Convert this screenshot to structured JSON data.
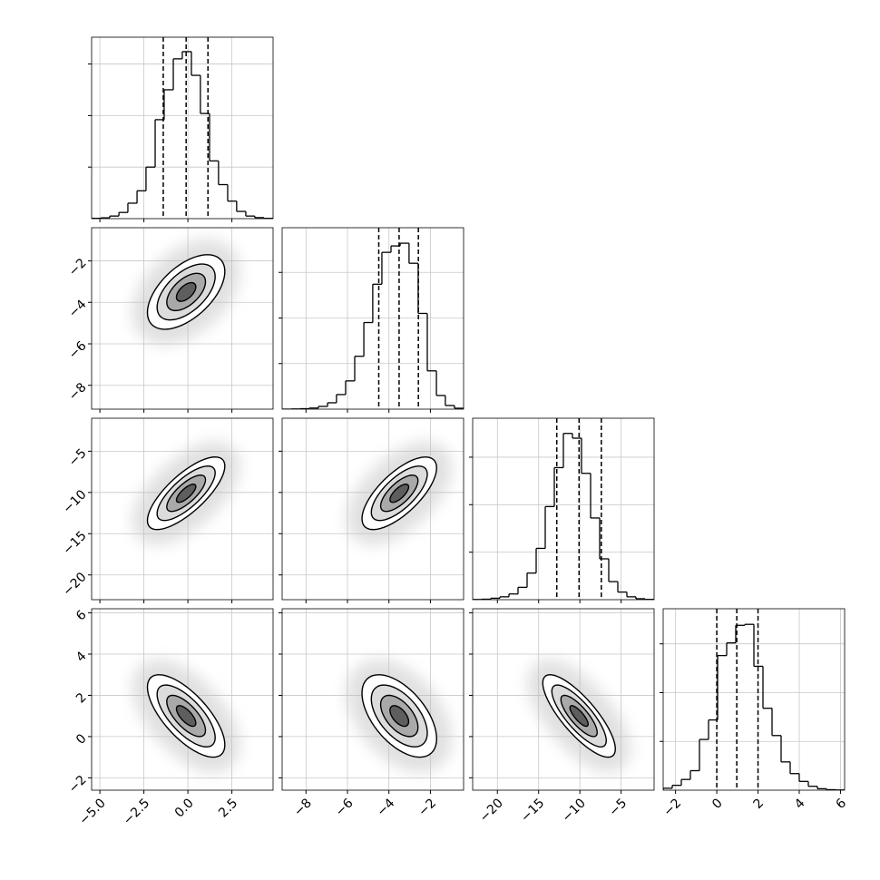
{
  "chart_data": {
    "type": "corner",
    "grid": true,
    "params": [
      {
        "range": [
          -5.47,
          4.84
        ],
        "ticks": [
          {
            "value": -5,
            "label": "−5.0"
          },
          {
            "value": -2.5,
            "label": "−2.5"
          },
          {
            "value": 0,
            "label": "0.0"
          },
          {
            "value": 2.5,
            "label": "2.5"
          }
        ],
        "quantiles": [
          -1.4,
          -0.1,
          1.14
        ],
        "bins": [
          -5.47,
          -4.95,
          -4.44,
          -3.92,
          -3.41,
          -2.89,
          -2.38,
          -1.86,
          -1.35,
          -0.83,
          -0.32,
          0.2,
          0.71,
          1.23,
          1.74,
          2.26,
          2.77,
          3.29,
          3.8,
          4.32,
          4.84
        ],
        "counts": [
          3,
          8,
          25,
          60,
          150,
          270,
          500,
          960,
          1250,
          1550,
          1620,
          1390,
          1020,
          560,
          330,
          170,
          70,
          25,
          10,
          3
        ],
        "hist_ylim": [
          0,
          1760
        ],
        "hist_yticks": [
          500,
          1000,
          1500
        ]
      },
      {
        "range": [
          -9.15,
          -0.4
        ],
        "ticks": [
          {
            "value": -8,
            "label": "−8"
          },
          {
            "value": -6,
            "label": "−6"
          },
          {
            "value": -4,
            "label": "−4"
          },
          {
            "value": -2,
            "label": "−2"
          }
        ],
        "quantiles": [
          -4.49,
          -3.51,
          -2.58
        ],
        "bins": [
          -9.15,
          -8.71,
          -8.28,
          -7.84,
          -7.4,
          -6.96,
          -6.53,
          -6.09,
          -5.65,
          -5.21,
          -4.78,
          -4.34,
          -3.9,
          -3.46,
          -3.03,
          -2.59,
          -2.15,
          -1.71,
          -1.28,
          -0.84,
          -0.4
        ],
        "counts": [
          0,
          2,
          5,
          12,
          30,
          70,
          160,
          310,
          580,
          950,
          1370,
          1720,
          1790,
          1820,
          1600,
          1050,
          420,
          150,
          40,
          10
        ],
        "hist_ylim": [
          0,
          1990
        ],
        "hist_yticks": [
          500,
          1000,
          1500
        ]
      },
      {
        "range": [
          -23,
          -1
        ],
        "ticks": [
          {
            "value": -20,
            "label": "−20"
          },
          {
            "value": -15,
            "label": "−15"
          },
          {
            "value": -10,
            "label": "−10"
          },
          {
            "value": -5,
            "label": "−5"
          }
        ],
        "quantiles": [
          -12.8,
          -10.1,
          -7.4
        ],
        "bins": [
          -23,
          -21.9,
          -20.8,
          -19.7,
          -18.6,
          -17.5,
          -16.4,
          -15.3,
          -14.2,
          -13.1,
          -12,
          -10.9,
          -9.8,
          -8.7,
          -7.6,
          -6.5,
          -5.4,
          -4.3,
          -3.2,
          -2.1,
          -1
        ],
        "counts": [
          2,
          5,
          15,
          30,
          60,
          130,
          280,
          540,
          980,
          1390,
          1750,
          1700,
          1330,
          860,
          430,
          190,
          80,
          30,
          10,
          3
        ],
        "hist_ylim": [
          0,
          1910
        ],
        "hist_yticks": [
          500,
          1000,
          1500
        ]
      },
      {
        "range": [
          -2.6,
          6.2
        ],
        "ticks": [
          {
            "value": -2,
            "label": "−2"
          },
          0,
          2,
          4,
          6
        ],
        "quantiles": [
          0,
          0.97,
          2.0
        ],
        "bins": [
          -2.6,
          -2.16,
          -1.72,
          -1.28,
          -0.84,
          -0.4,
          0.04,
          0.48,
          0.92,
          1.36,
          1.8,
          2.24,
          2.68,
          3.12,
          3.56,
          4,
          4.44,
          4.88,
          5.32,
          5.76,
          6.2
        ],
        "counts": [
          20,
          50,
          110,
          200,
          520,
          720,
          1380,
          1510,
          1690,
          1700,
          1270,
          840,
          560,
          290,
          170,
          90,
          40,
          15,
          5,
          2
        ],
        "hist_ylim": [
          0,
          1860
        ],
        "hist_yticks": [
          500,
          1000,
          1500
        ]
      }
    ],
    "pairs": [
      {
        "center": [
          -0.1,
          -3.5
        ],
        "u": [
          1.1,
          0.495
        ],
        "v": [
          0,
          0.75
        ],
        "levels": [
          0.5,
          1,
          1.5,
          2
        ]
      },
      {
        "center": [
          -0.1,
          -10.1
        ],
        "u": [
          1.1,
          1.65
        ],
        "v": [
          0,
          1.455
        ],
        "levels": [
          0.5,
          1,
          1.5,
          2
        ]
      },
      {
        "center": [
          -3.5,
          -10.1
        ],
        "u": [
          0.9,
          1.54
        ],
        "v": [
          0,
          1.57
        ],
        "levels": [
          0.5,
          1,
          1.5,
          2
        ]
      },
      {
        "center": [
          -0.1,
          1.0
        ],
        "u": [
          1.1,
          -0.7
        ],
        "v": [
          0,
          0.714
        ],
        "levels": [
          0.5,
          1,
          1.5,
          2
        ]
      },
      {
        "center": [
          -3.5,
          1.0
        ],
        "u": [
          0.9,
          -0.55
        ],
        "v": [
          0,
          0.835
        ],
        "levels": [
          0.5,
          1,
          1.5,
          2
        ]
      },
      {
        "center": [
          -10.1,
          1.0
        ],
        "u": [
          2.2,
          -0.8
        ],
        "v": [
          0,
          0.6
        ],
        "levels": [
          0.5,
          1,
          1.5,
          2
        ]
      }
    ]
  }
}
